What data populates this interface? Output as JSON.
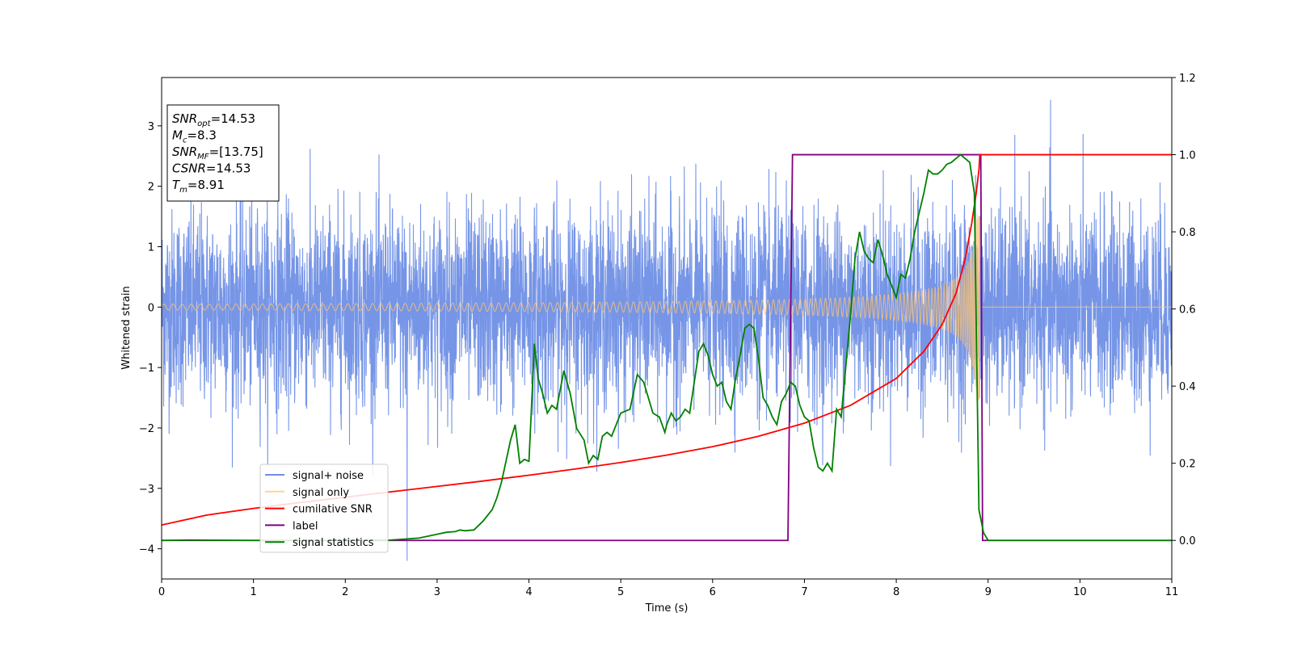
{
  "chart_data": {
    "type": "line",
    "xlabel": "Time (s)",
    "ylabel": "Whitened strain",
    "xlim": [
      0,
      11
    ],
    "ylim": [
      -4.5,
      3.8
    ],
    "y2lim": [
      -0.1,
      1.2
    ],
    "x_ticks": [
      "0",
      "1",
      "2",
      "3",
      "4",
      "5",
      "6",
      "7",
      "8",
      "9",
      "10",
      "11"
    ],
    "y_ticks": [
      "−4",
      "−3",
      "−2",
      "−1",
      "0",
      "1",
      "2",
      "3"
    ],
    "y2_ticks": [
      "0.0",
      "0.2",
      "0.4",
      "0.6",
      "0.8",
      "1.0",
      "1.2"
    ],
    "grid": false,
    "legend_position": "lower-left",
    "legend": [
      {
        "label": "signal+ noise",
        "color": "#6f8fe6"
      },
      {
        "label": "signal only",
        "color": "#ffc470"
      },
      {
        "label": "cumilative SNR",
        "color": "#ff0000"
      },
      {
        "label": "label",
        "color": "#800080"
      },
      {
        "label": "signal statistics",
        "color": "#008000"
      }
    ],
    "info_box": {
      "lines": [
        {
          "var": "SNR",
          "sub": "opt",
          "value": "=14.53"
        },
        {
          "var": "M",
          "sub": "c",
          "value": "=8.3"
        },
        {
          "var": "SNR",
          "sub": "MF",
          "value": "=[13.75]"
        },
        {
          "var": "CSNR",
          "sub": "",
          "value": "=14.53"
        },
        {
          "var": "T",
          "sub": "m",
          "value": "=8.91"
        }
      ]
    },
    "series": [
      {
        "name": "signal+ noise",
        "axis": "left",
        "color": "#6f8fe6",
        "description": "whitened noise, roughly ±1 sigma band with spikes to about ±3.4",
        "typical_range": [
          -2.6,
          2.9
        ],
        "max": 3.43,
        "min": -4.2
      },
      {
        "name": "signal only",
        "axis": "left",
        "color": "#ffc470",
        "description": "chirp with growing amplitude ending at merger",
        "start_amplitude": 0.05,
        "end_time": 8.91,
        "end_amplitude": 1.55
      },
      {
        "name": "cumilative SNR",
        "axis": "right",
        "color": "#ff0000",
        "points": [
          [
            0,
            0.04
          ],
          [
            0.5,
            0.066
          ],
          [
            1,
            0.083
          ],
          [
            1.5,
            0.098
          ],
          [
            2,
            0.112
          ],
          [
            2.5,
            0.126
          ],
          [
            3,
            0.14
          ],
          [
            3.5,
            0.154
          ],
          [
            4,
            0.169
          ],
          [
            4.5,
            0.185
          ],
          [
            5,
            0.202
          ],
          [
            5.5,
            0.221
          ],
          [
            6,
            0.243
          ],
          [
            6.5,
            0.27
          ],
          [
            7,
            0.304
          ],
          [
            7.5,
            0.35
          ],
          [
            8,
            0.42
          ],
          [
            8.3,
            0.49
          ],
          [
            8.5,
            0.56
          ],
          [
            8.65,
            0.64
          ],
          [
            8.75,
            0.73
          ],
          [
            8.82,
            0.82
          ],
          [
            8.87,
            0.9
          ],
          [
            8.9,
            0.96
          ],
          [
            8.91,
            1.0
          ],
          [
            11,
            1.0
          ]
        ]
      },
      {
        "name": "label",
        "axis": "right",
        "color": "#800080",
        "points": [
          [
            0,
            0
          ],
          [
            6.82,
            0
          ],
          [
            6.87,
            1
          ],
          [
            8.92,
            1
          ],
          [
            8.94,
            0
          ],
          [
            11,
            0
          ]
        ]
      },
      {
        "name": "signal statistics",
        "axis": "right",
        "color": "#008000",
        "points": [
          [
            0,
            0
          ],
          [
            0.3,
            0.001
          ],
          [
            1,
            0
          ],
          [
            2,
            0
          ],
          [
            2.5,
            0.001
          ],
          [
            2.8,
            0.006
          ],
          [
            3,
            0.016
          ],
          [
            3.1,
            0.021
          ],
          [
            3.2,
            0.023
          ],
          [
            3.25,
            0.027
          ],
          [
            3.3,
            0.025
          ],
          [
            3.4,
            0.027
          ],
          [
            3.5,
            0.05
          ],
          [
            3.6,
            0.08
          ],
          [
            3.65,
            0.11
          ],
          [
            3.7,
            0.15
          ],
          [
            3.8,
            0.26
          ],
          [
            3.85,
            0.3
          ],
          [
            3.9,
            0.2
          ],
          [
            3.95,
            0.21
          ],
          [
            4.0,
            0.205
          ],
          [
            4.06,
            0.51
          ],
          [
            4.1,
            0.42
          ],
          [
            4.15,
            0.38
          ],
          [
            4.2,
            0.33
          ],
          [
            4.25,
            0.35
          ],
          [
            4.3,
            0.34
          ],
          [
            4.38,
            0.44
          ],
          [
            4.45,
            0.38
          ],
          [
            4.52,
            0.29
          ],
          [
            4.6,
            0.26
          ],
          [
            4.65,
            0.2
          ],
          [
            4.7,
            0.22
          ],
          [
            4.75,
            0.21
          ],
          [
            4.8,
            0.27
          ],
          [
            4.85,
            0.28
          ],
          [
            4.9,
            0.27
          ],
          [
            5.0,
            0.33
          ],
          [
            5.05,
            0.335
          ],
          [
            5.1,
            0.34
          ],
          [
            5.18,
            0.43
          ],
          [
            5.25,
            0.41
          ],
          [
            5.3,
            0.37
          ],
          [
            5.35,
            0.33
          ],
          [
            5.42,
            0.32
          ],
          [
            5.48,
            0.28
          ],
          [
            5.5,
            0.3
          ],
          [
            5.55,
            0.33
          ],
          [
            5.6,
            0.31
          ],
          [
            5.65,
            0.32
          ],
          [
            5.7,
            0.34
          ],
          [
            5.75,
            0.33
          ],
          [
            5.8,
            0.41
          ],
          [
            5.85,
            0.49
          ],
          [
            5.9,
            0.51
          ],
          [
            5.95,
            0.48
          ],
          [
            6.0,
            0.43
          ],
          [
            6.05,
            0.4
          ],
          [
            6.1,
            0.41
          ],
          [
            6.15,
            0.36
          ],
          [
            6.2,
            0.34
          ],
          [
            6.25,
            0.42
          ],
          [
            6.3,
            0.48
          ],
          [
            6.35,
            0.55
          ],
          [
            6.4,
            0.56
          ],
          [
            6.45,
            0.55
          ],
          [
            6.5,
            0.47
          ],
          [
            6.55,
            0.37
          ],
          [
            6.6,
            0.35
          ],
          [
            6.65,
            0.32
          ],
          [
            6.7,
            0.3
          ],
          [
            6.75,
            0.36
          ],
          [
            6.8,
            0.38
          ],
          [
            6.85,
            0.41
          ],
          [
            6.9,
            0.4
          ],
          [
            6.95,
            0.35
          ],
          [
            7.0,
            0.32
          ],
          [
            7.05,
            0.31
          ],
          [
            7.1,
            0.24
          ],
          [
            7.15,
            0.19
          ],
          [
            7.2,
            0.18
          ],
          [
            7.25,
            0.2
          ],
          [
            7.3,
            0.18
          ],
          [
            7.35,
            0.34
          ],
          [
            7.4,
            0.32
          ],
          [
            7.5,
            0.58
          ],
          [
            7.55,
            0.73
          ],
          [
            7.6,
            0.8
          ],
          [
            7.65,
            0.75
          ],
          [
            7.7,
            0.73
          ],
          [
            7.75,
            0.72
          ],
          [
            7.8,
            0.78
          ],
          [
            7.85,
            0.74
          ],
          [
            7.9,
            0.69
          ],
          [
            8.0,
            0.63
          ],
          [
            8.05,
            0.69
          ],
          [
            8.1,
            0.68
          ],
          [
            8.15,
            0.73
          ],
          [
            8.2,
            0.8
          ],
          [
            8.3,
            0.9
          ],
          [
            8.35,
            0.96
          ],
          [
            8.4,
            0.95
          ],
          [
            8.45,
            0.95
          ],
          [
            8.5,
            0.96
          ],
          [
            8.55,
            0.975
          ],
          [
            8.6,
            0.98
          ],
          [
            8.65,
            0.99
          ],
          [
            8.7,
            1.0
          ],
          [
            8.75,
            0.99
          ],
          [
            8.8,
            0.98
          ],
          [
            8.85,
            0.9
          ],
          [
            8.9,
            0.08
          ],
          [
            8.95,
            0.02
          ],
          [
            9.0,
            0
          ],
          [
            11,
            0
          ]
        ]
      }
    ]
  }
}
